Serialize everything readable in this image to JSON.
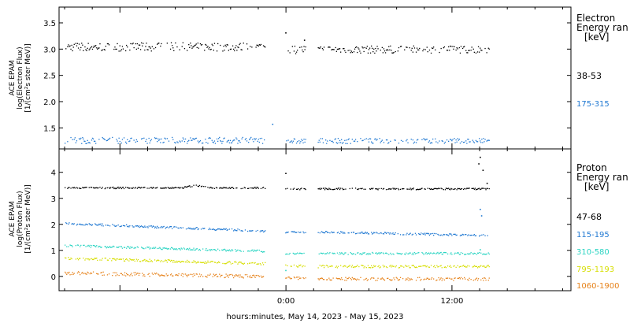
{
  "chart_data": [
    {
      "type": "scatter",
      "panel": "electron",
      "ylabel_lines": [
        "ACE EPAM",
        "log(Electron Flux)",
        "[1/(cm²s ster MeV)]"
      ],
      "yticks": [
        "1.5",
        "2.0",
        "2.5",
        "3.0",
        "3.5"
      ],
      "ylim": [
        1.1,
        3.8
      ],
      "legend_title": [
        "Electron",
        "Energy ran"
      ],
      "legend_unit": "[keV]",
      "series": [
        {
          "name": "38-53",
          "color": "#000000",
          "segments": [
            {
              "start": -16.0,
              "end": -1.5,
              "level": 3.05,
              "amp": 0.08
            },
            {
              "start": -0.05,
              "end": 1.4,
              "level": 3.0,
              "amp": 0.08
            },
            {
              "start": 2.3,
              "end": 14.7,
              "level": 3.0,
              "amp": 0.07
            }
          ],
          "spikes": [
            {
              "x": -0.05,
              "y": 3.32
            },
            {
              "x": 1.3,
              "y": 3.18
            }
          ]
        },
        {
          "name": "175-315",
          "color": "#1f78d2",
          "segments": [
            {
              "start": -16.0,
              "end": -1.5,
              "level": 1.27,
              "amp": 0.06
            },
            {
              "start": -0.05,
              "end": 1.4,
              "level": 1.26,
              "amp": 0.05
            },
            {
              "start": 2.3,
              "end": 14.7,
              "level": 1.26,
              "amp": 0.05
            }
          ],
          "spikes": [
            {
              "x": -1.0,
              "y": 1.58
            }
          ]
        }
      ]
    },
    {
      "type": "scatter",
      "panel": "proton",
      "ylabel_lines": [
        "ACE EPAM",
        "log(Proton Flux)",
        "[1/(cm²s ster MeV)]"
      ],
      "yticks": [
        "0",
        "1",
        "2",
        "3",
        "4"
      ],
      "ylim": [
        -0.55,
        4.9
      ],
      "legend_title": [
        "Proton",
        "Energy ran"
      ],
      "legend_unit": "[keV]",
      "series": [
        {
          "name": "47-68",
          "color": "#000000",
          "segments": [
            {
              "start": -16.0,
              "end": -1.5,
              "level": 3.42,
              "amp": 0.03
            },
            {
              "start": -0.05,
              "end": 1.4,
              "level": 3.38,
              "amp": 0.03
            },
            {
              "start": 2.3,
              "end": 14.7,
              "level": 3.38,
              "amp": 0.03
            }
          ],
          "spikes": [
            {
              "x": -0.05,
              "y": 3.98
            },
            {
              "x": 13.9,
              "y": 4.35
            },
            {
              "x": 14.0,
              "y": 4.6
            },
            {
              "x": 14.2,
              "y": 4.1
            },
            {
              "x": 14.5,
              "y": 3.6
            }
          ]
        },
        {
          "name": "115-195",
          "color": "#1f78d2",
          "segments": [
            {
              "start": -16.0,
              "end": -1.5,
              "level": 2.05,
              "amp": 0.04,
              "slope": -0.02
            },
            {
              "start": -0.05,
              "end": 1.4,
              "level": 1.72,
              "amp": 0.03
            },
            {
              "start": 2.3,
              "end": 14.7,
              "level": 1.72,
              "amp": 0.04,
              "slope": -0.01
            }
          ],
          "spikes": [
            {
              "x": 14.0,
              "y": 2.6
            },
            {
              "x": 14.1,
              "y": 2.35
            }
          ]
        },
        {
          "name": "310-580",
          "color": "#2ad4c2",
          "segments": [
            {
              "start": -16.0,
              "end": -1.5,
              "level": 1.2,
              "amp": 0.04,
              "slope": -0.015
            },
            {
              "start": -0.05,
              "end": 1.4,
              "level": 0.9,
              "amp": 0.03
            },
            {
              "start": 2.3,
              "end": 14.7,
              "level": 0.9,
              "amp": 0.04
            }
          ],
          "spikes": [
            {
              "x": -0.05,
              "y": 0.25
            },
            {
              "x": 14.0,
              "y": 1.05
            }
          ]
        },
        {
          "name": "795-1193",
          "color": "#d6de00",
          "segments": [
            {
              "start": -16.0,
              "end": -1.5,
              "level": 0.72,
              "amp": 0.05,
              "slope": -0.015
            },
            {
              "start": -0.05,
              "end": 1.4,
              "level": 0.42,
              "amp": 0.04
            },
            {
              "start": 2.3,
              "end": 14.7,
              "level": 0.4,
              "amp": 0.05
            }
          ],
          "spikes": []
        },
        {
          "name": "1060-1900",
          "color": "#e6821a",
          "segments": [
            {
              "start": -16.0,
              "end": -1.5,
              "level": 0.15,
              "amp": 0.07,
              "slope": -0.01
            },
            {
              "start": -0.05,
              "end": 1.4,
              "level": -0.05,
              "amp": 0.06
            },
            {
              "start": 2.3,
              "end": 14.7,
              "level": -0.08,
              "amp": 0.06
            }
          ],
          "spikes": []
        }
      ]
    }
  ],
  "x_axis": {
    "xlim": [
      -16.4,
      20.6
    ],
    "ticks": [
      {
        "x": 0,
        "label": "0:00"
      },
      {
        "x": 12,
        "label": "12:00"
      }
    ],
    "xlabel": "hours:minutes, May 14, 2023 - May 15, 2023"
  }
}
